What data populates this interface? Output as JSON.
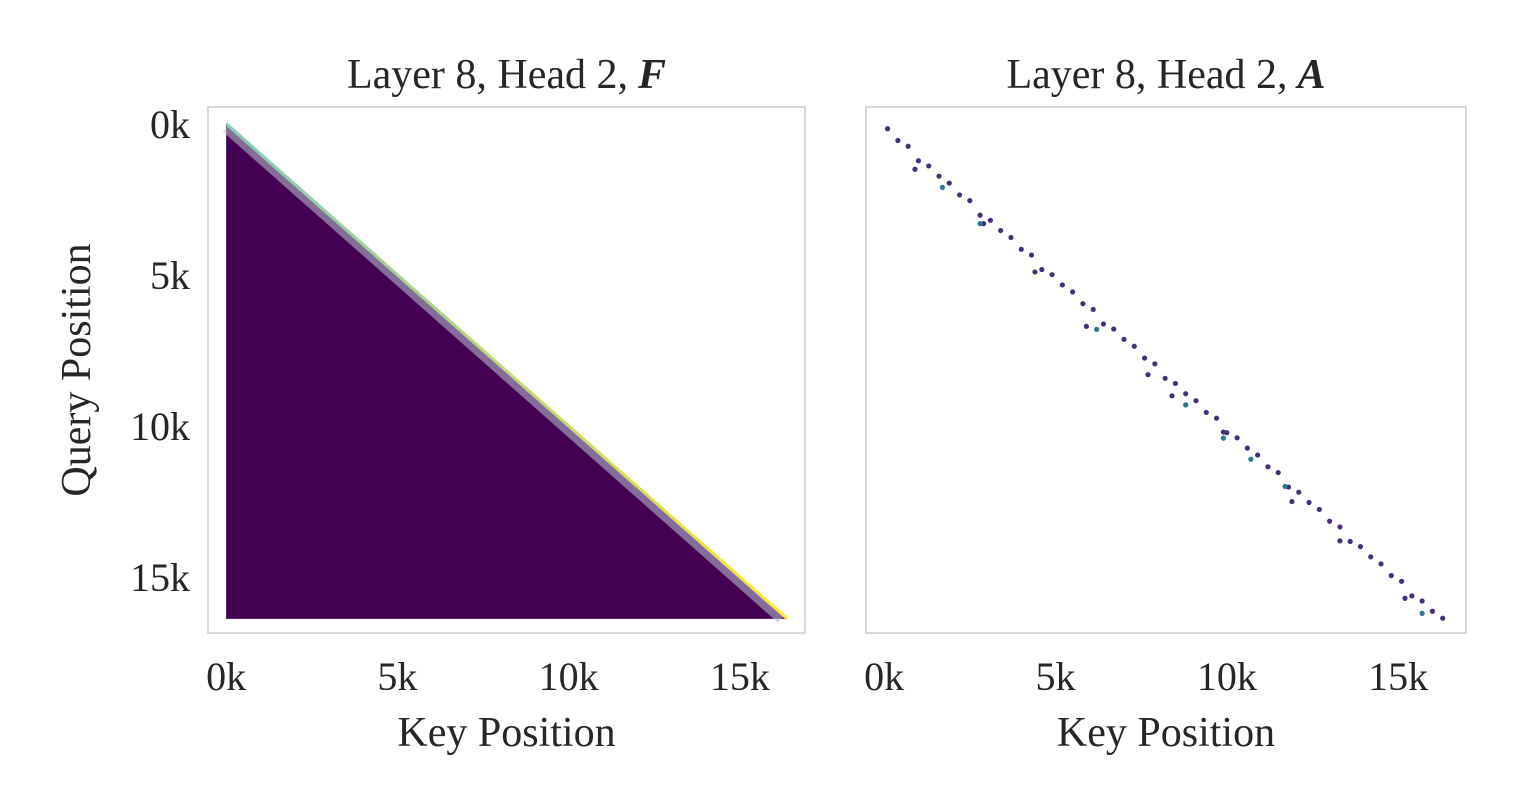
{
  "chart_data": [
    {
      "type": "heatmap",
      "title": "Layer 8, Head 2,",
      "title_symbol": "F",
      "xlabel": "Key Position",
      "ylabel": "Query Position",
      "size": 16384,
      "colors": [
        "#440154",
        "#7fcdbb",
        "#fde725"
      ],
      "xlim": [
        -530,
        16900
      ],
      "ylim": [
        16850,
        -560
      ],
      "xticks": [
        {
          "value": 0,
          "label": "0k"
        },
        {
          "value": 5000,
          "label": "5k"
        },
        {
          "value": 10000,
          "label": "10k"
        },
        {
          "value": 15000,
          "label": "15k"
        }
      ],
      "yticks": [
        {
          "value": 0,
          "label": "0k"
        },
        {
          "value": 5000,
          "label": "5k"
        },
        {
          "value": 10000,
          "label": "10k"
        },
        {
          "value": 15000,
          "label": "15k"
        }
      ],
      "grid": false
    },
    {
      "type": "scatter",
      "title": "Layer 8, Head 2,",
      "title_symbol": "A",
      "xlabel": "Key Position",
      "xlim": [
        -530,
        16980
      ],
      "ylim": [
        16850,
        -560
      ],
      "xticks": [
        {
          "value": 0,
          "label": "0k"
        },
        {
          "value": 5000,
          "label": "5k"
        },
        {
          "value": 10000,
          "label": "10k"
        },
        {
          "value": 15000,
          "label": "15k"
        }
      ],
      "grid": false,
      "series": [
        {
          "color": "#472d7b",
          "x": [
            100,
            400,
            700,
            1000,
            1300,
            1600,
            1900,
            2200,
            2500,
            2800,
            3100,
            3400,
            3700,
            4000,
            4300,
            4600,
            4900,
            5200,
            5500,
            5800,
            6100,
            6400,
            6700,
            7000,
            7300,
            7600,
            7900,
            8200,
            8500,
            8800,
            9100,
            9400,
            9700,
            10000,
            10300,
            10600,
            10900,
            11200,
            11500,
            11800,
            12100,
            12400,
            12700,
            13000,
            13300,
            13600,
            13900,
            14200,
            14500,
            14800,
            15100,
            15400,
            15700,
            16000,
            16300,
            900,
            2900,
            4400,
            5900,
            7700,
            8400,
            9900,
            11900,
            13300,
            15200
          ],
          "values": [
            160,
            550,
            740,
            1220,
            1390,
            1730,
            1960,
            2350,
            2540,
            3020,
            3190,
            3530,
            3760,
            4150,
            4340,
            4820,
            4990,
            5330,
            5560,
            5950,
            6140,
            6620,
            6790,
            7130,
            7360,
            7750,
            7940,
            8420,
            8590,
            8930,
            9160,
            9550,
            9740,
            10220,
            10390,
            10730,
            10960,
            11350,
            11540,
            12020,
            12190,
            12530,
            12760,
            13150,
            13340,
            13820,
            13990,
            14330,
            14560,
            14950,
            15140,
            15620,
            15790,
            16130,
            16360,
            1500,
            3300,
            4900,
            6700,
            8300,
            9000,
            10200,
            12500,
            13800,
            15700
          ]
        },
        {
          "color": "#2a788e",
          "x": [
            1700,
            2800,
            6200,
            8800,
            9900,
            10700,
            11700,
            15700
          ],
          "values": [
            2100,
            3300,
            6800,
            9300,
            10400,
            11100,
            12000,
            16200
          ]
        }
      ]
    }
  ]
}
